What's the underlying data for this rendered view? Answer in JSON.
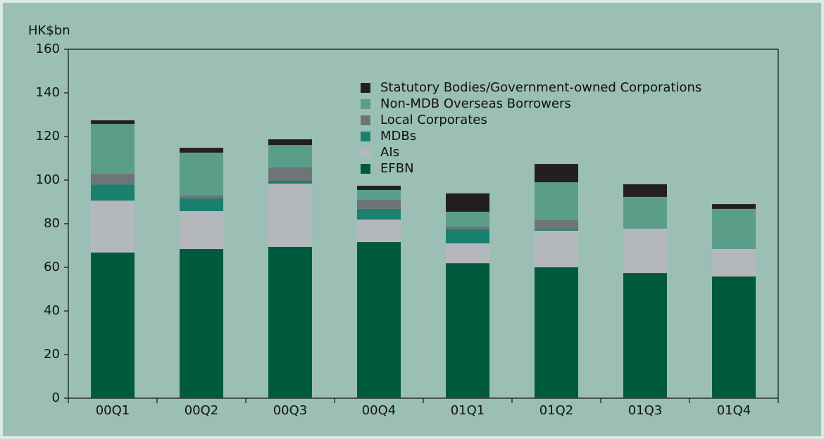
{
  "chart_data": {
    "type": "stacked_bar",
    "y_axis_label": "HK$bn",
    "categories": [
      "00Q1",
      "00Q2",
      "00Q3",
      "00Q4",
      "01Q1",
      "01Q2",
      "01Q3",
      "01Q4"
    ],
    "series": [
      {
        "name": "EFBN",
        "color": "#005a3c",
        "values": [
          66.8,
          68.4,
          69.4,
          71.6,
          61.9,
          60.0,
          57.4,
          55.8
        ]
      },
      {
        "name": "AIs",
        "color": "#b4b8bc",
        "values": [
          23.8,
          17.4,
          29.0,
          10.3,
          9.1,
          16.8,
          20.3,
          12.6
        ]
      },
      {
        "name": "MDBs",
        "color": "#1a8070",
        "values": [
          7.4,
          5.8,
          1.3,
          4.9,
          6.4,
          0.6,
          0,
          0
        ]
      },
      {
        "name": "Local Corporates",
        "color": "#6e7576",
        "values": [
          5.0,
          1.3,
          6.1,
          4.2,
          1.3,
          4.2,
          0,
          0
        ]
      },
      {
        "name": "Non-MDB Overseas Borrowers",
        "color": "#5a9e8a",
        "values": [
          22.8,
          19.7,
          10.3,
          4.5,
          6.8,
          17.4,
          14.6,
          18.4
        ]
      },
      {
        "name": "Statutory Bodies/Government-owned Corporations",
        "color": "#231f20",
        "values": [
          1.6,
          2.2,
          2.6,
          1.9,
          8.4,
          8.4,
          5.8,
          2.2
        ]
      }
    ],
    "ylim": [
      0,
      160
    ],
    "yticks": [
      0,
      20,
      40,
      60,
      80,
      100,
      120,
      140,
      160
    ],
    "legend": "top-right"
  }
}
